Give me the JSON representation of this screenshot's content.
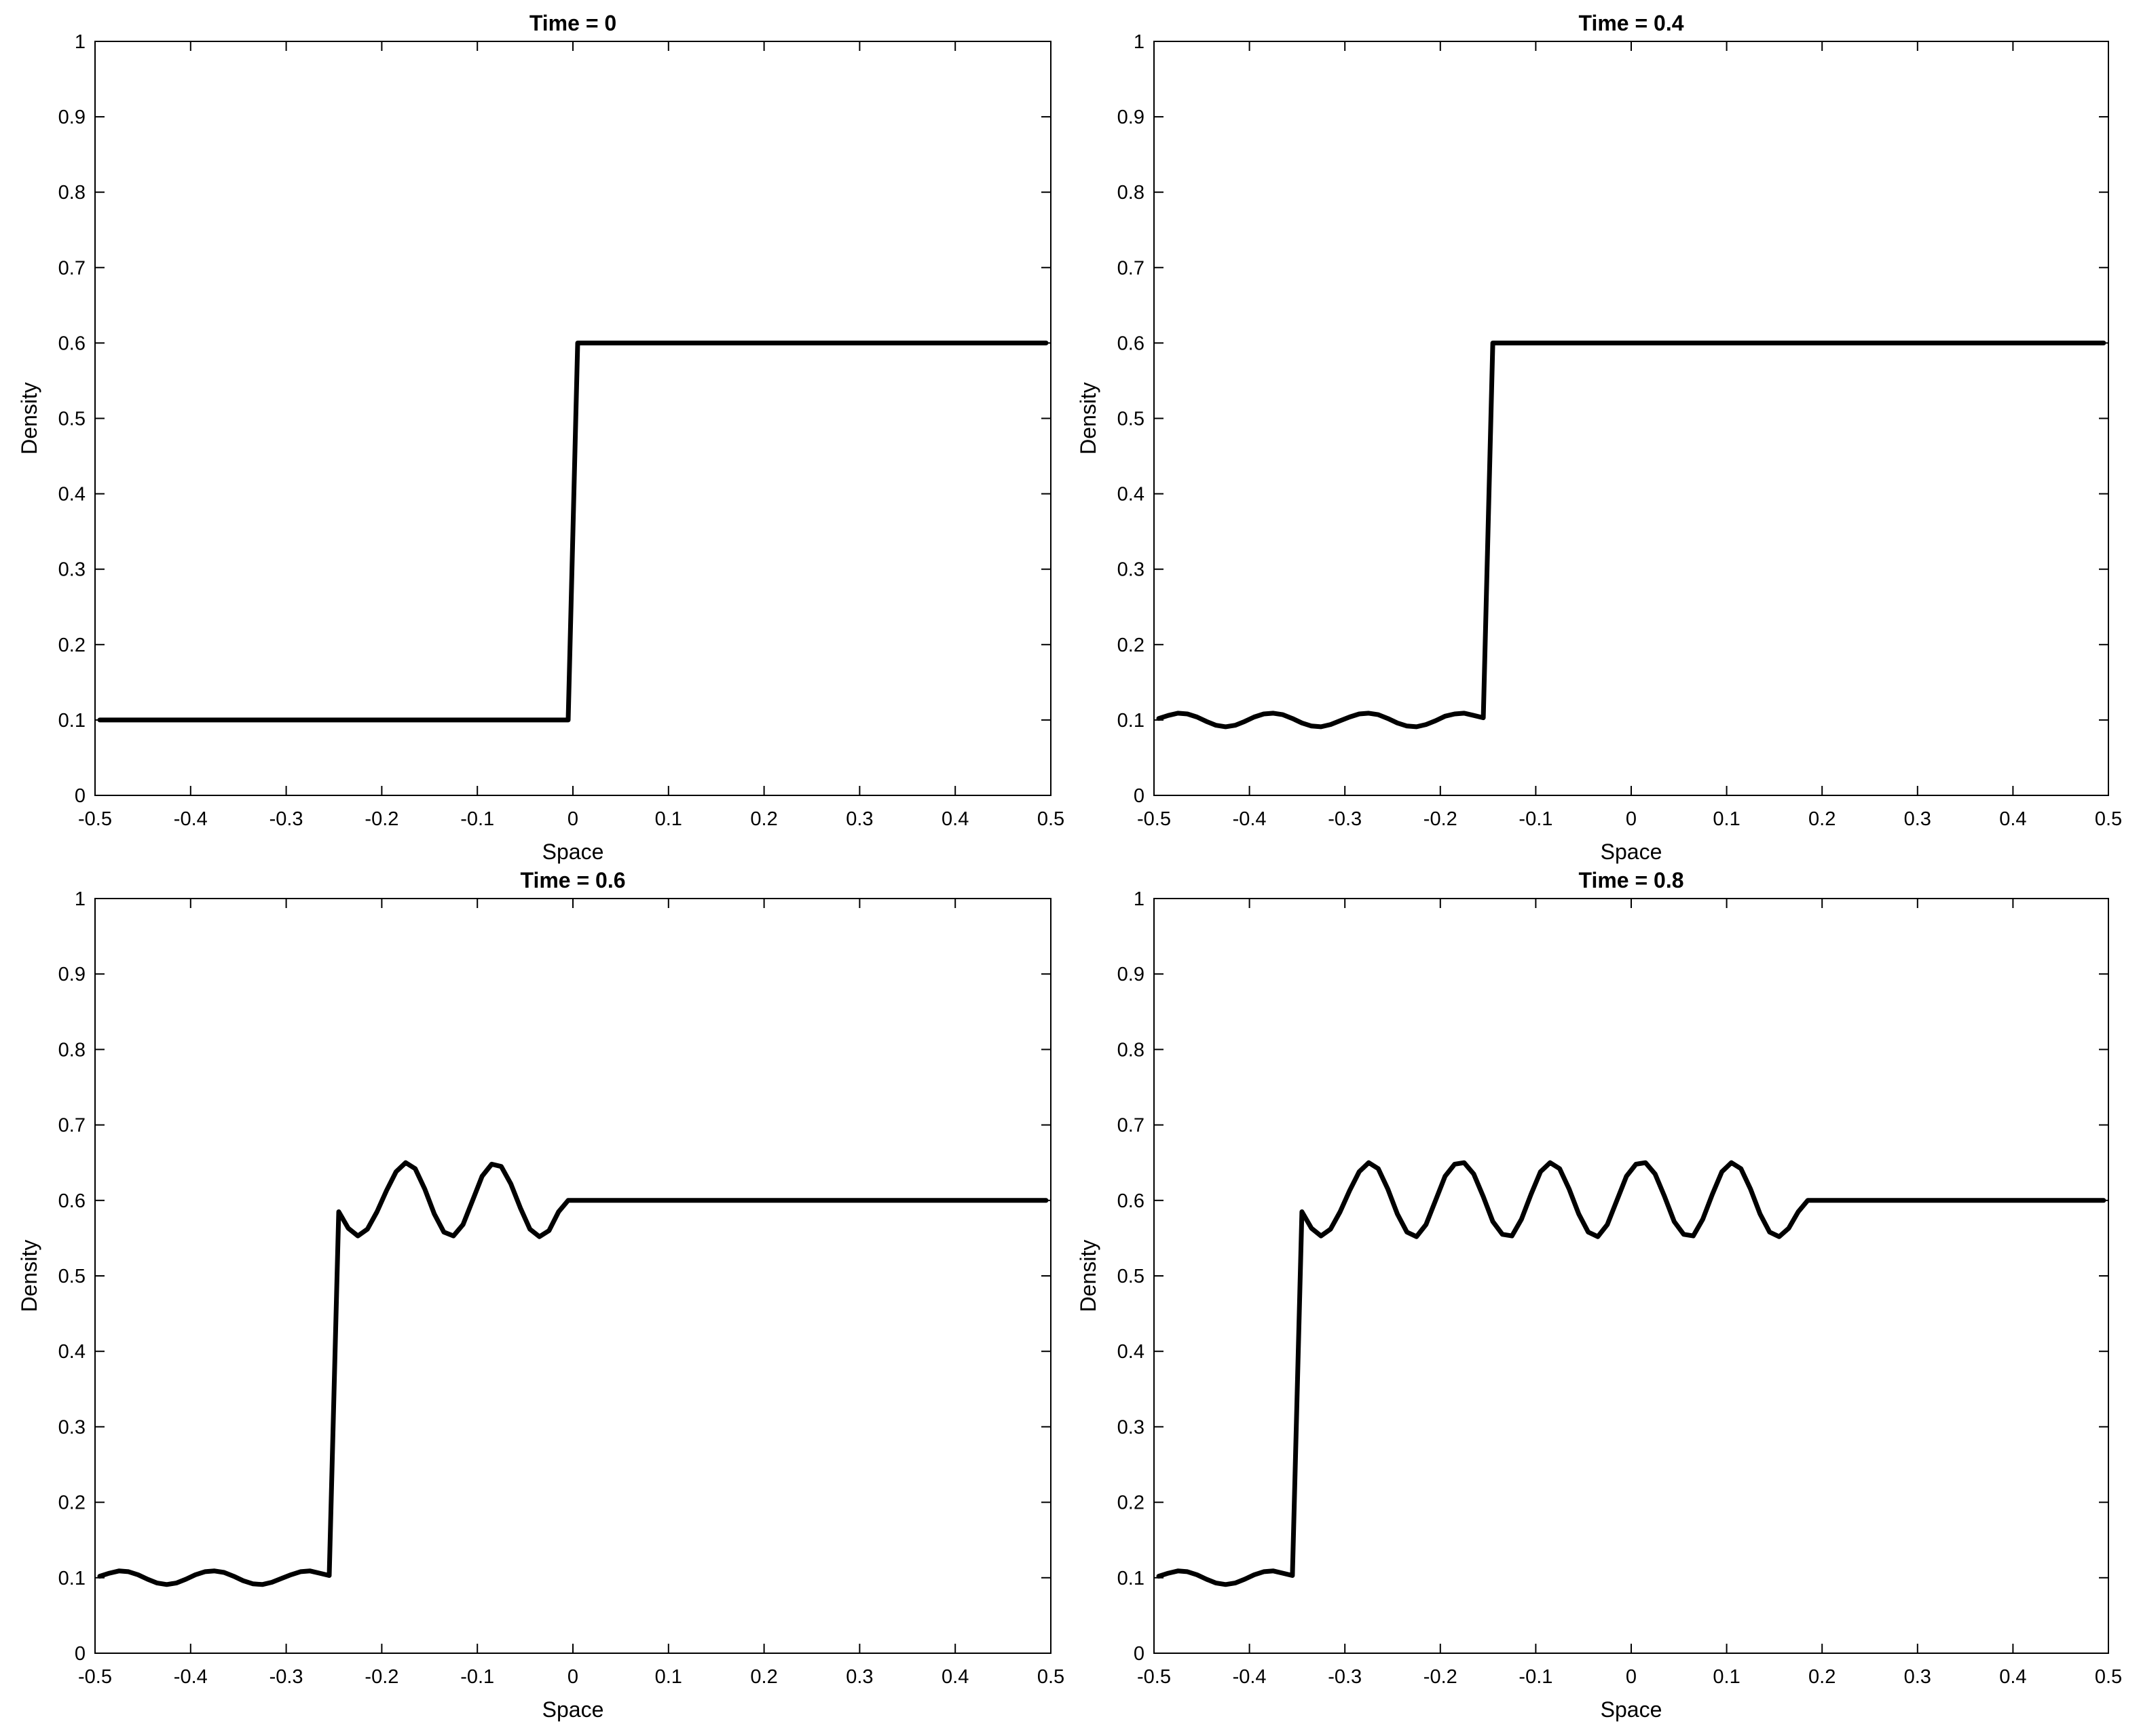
{
  "chart_data": [
    {
      "type": "line",
      "title": "Time = 0",
      "xlabel": "Space",
      "ylabel": "Density",
      "xlim": [
        -0.5,
        0.5
      ],
      "ylim": [
        0,
        1
      ],
      "xticks": [
        "-0.5",
        "-0.4",
        "-0.3",
        "-0.2",
        "-0.1",
        "0",
        "0.1",
        "0.2",
        "0.3",
        "0.4",
        "0.5"
      ],
      "yticks": [
        "0",
        "0.1",
        "0.2",
        "0.3",
        "0.4",
        "0.5",
        "0.6",
        "0.7",
        "0.8",
        "0.9",
        "1"
      ],
      "grid": false,
      "color": "#000000",
      "series": [
        {
          "x": [
            -0.495,
            -0.005,
            0.005,
            0.495
          ],
          "y": [
            0.1,
            0.1,
            0.6,
            0.6
          ]
        }
      ]
    },
    {
      "type": "line",
      "title": "Time = 0.4",
      "xlabel": "Space",
      "ylabel": "Density",
      "xlim": [
        -0.5,
        0.5
      ],
      "ylim": [
        0,
        1
      ],
      "xticks": [
        "-0.5",
        "-0.4",
        "-0.3",
        "-0.2",
        "-0.1",
        "0",
        "0.1",
        "0.2",
        "0.3",
        "0.4",
        "0.5"
      ],
      "yticks": [
        "0",
        "0.1",
        "0.2",
        "0.3",
        "0.4",
        "0.5",
        "0.6",
        "0.7",
        "0.8",
        "0.9",
        "1"
      ],
      "grid": false,
      "color": "#000000",
      "series": [
        {
          "x": [
            -0.495,
            -0.485,
            -0.475,
            -0.465,
            -0.455,
            -0.445,
            -0.435,
            -0.425,
            -0.415,
            -0.405,
            -0.395,
            -0.385,
            -0.375,
            -0.365,
            -0.355,
            -0.345,
            -0.335,
            -0.325,
            -0.315,
            -0.305,
            -0.295,
            -0.285,
            -0.275,
            -0.265,
            -0.255,
            -0.245,
            -0.235,
            -0.225,
            -0.215,
            -0.205,
            -0.195,
            -0.185,
            -0.175,
            -0.165,
            -0.155,
            -0.145,
            -0.135,
            0.495
          ],
          "y": [
            0.102,
            0.106,
            0.109,
            0.108,
            0.104,
            0.098,
            0.093,
            0.091,
            0.093,
            0.098,
            0.104,
            0.108,
            0.109,
            0.107,
            0.102,
            0.096,
            0.092,
            0.091,
            0.094,
            0.099,
            0.104,
            0.108,
            0.109,
            0.107,
            0.102,
            0.096,
            0.092,
            0.091,
            0.094,
            0.099,
            0.105,
            0.108,
            0.109,
            0.106,
            0.103,
            0.6,
            0.6,
            0.6
          ]
        }
      ]
    },
    {
      "type": "line",
      "title": "Time = 0.6",
      "xlabel": "Space",
      "ylabel": "Density",
      "xlim": [
        -0.5,
        0.5
      ],
      "ylim": [
        0,
        1
      ],
      "xticks": [
        "-0.5",
        "-0.4",
        "-0.3",
        "-0.2",
        "-0.1",
        "0",
        "0.1",
        "0.2",
        "0.3",
        "0.4",
        "0.5"
      ],
      "yticks": [
        "0",
        "0.1",
        "0.2",
        "0.3",
        "0.4",
        "0.5",
        "0.6",
        "0.7",
        "0.8",
        "0.9",
        "1"
      ],
      "grid": false,
      "color": "#000000",
      "series": [
        {
          "x": [
            -0.495,
            -0.485,
            -0.475,
            -0.465,
            -0.455,
            -0.445,
            -0.435,
            -0.425,
            -0.415,
            -0.405,
            -0.395,
            -0.385,
            -0.375,
            -0.365,
            -0.355,
            -0.345,
            -0.335,
            -0.325,
            -0.315,
            -0.305,
            -0.295,
            -0.285,
            -0.275,
            -0.265,
            -0.255,
            -0.245,
            -0.235,
            -0.225,
            -0.215,
            -0.205,
            -0.195,
            -0.185,
            -0.175,
            -0.165,
            -0.155,
            -0.145,
            -0.135,
            -0.125,
            -0.115,
            -0.105,
            -0.095,
            -0.085,
            -0.075,
            -0.065,
            -0.055,
            -0.045,
            -0.035,
            -0.025,
            -0.015,
            -0.005,
            0.005,
            0.495
          ],
          "y": [
            0.102,
            0.106,
            0.109,
            0.108,
            0.104,
            0.098,
            0.093,
            0.091,
            0.093,
            0.098,
            0.104,
            0.108,
            0.109,
            0.107,
            0.102,
            0.096,
            0.092,
            0.091,
            0.094,
            0.099,
            0.104,
            0.108,
            0.109,
            0.106,
            0.103,
            0.585,
            0.563,
            0.553,
            0.562,
            0.585,
            0.613,
            0.638,
            0.65,
            0.642,
            0.615,
            0.582,
            0.558,
            0.553,
            0.568,
            0.6,
            0.632,
            0.648,
            0.645,
            0.622,
            0.59,
            0.562,
            0.552,
            0.56,
            0.585,
            0.6,
            0.6,
            0.6
          ]
        }
      ]
    },
    {
      "type": "line",
      "title": "Time = 0.8",
      "xlabel": "Space",
      "ylabel": "Density",
      "xlim": [
        -0.5,
        0.5
      ],
      "ylim": [
        0,
        1
      ],
      "xticks": [
        "-0.5",
        "-0.4",
        "-0.3",
        "-0.2",
        "-0.1",
        "0",
        "0.1",
        "0.2",
        "0.3",
        "0.4",
        "0.5"
      ],
      "yticks": [
        "0",
        "0.1",
        "0.2",
        "0.3",
        "0.4",
        "0.5",
        "0.6",
        "0.7",
        "0.8",
        "0.9",
        "1"
      ],
      "grid": false,
      "color": "#000000",
      "series": [
        {
          "x": [
            -0.495,
            -0.485,
            -0.475,
            -0.465,
            -0.455,
            -0.445,
            -0.435,
            -0.425,
            -0.415,
            -0.405,
            -0.395,
            -0.385,
            -0.375,
            -0.365,
            -0.355,
            -0.345,
            -0.335,
            -0.325,
            -0.315,
            -0.305,
            -0.295,
            -0.285,
            -0.275,
            -0.265,
            -0.255,
            -0.245,
            -0.235,
            -0.225,
            -0.215,
            -0.205,
            -0.195,
            -0.185,
            -0.175,
            -0.165,
            -0.155,
            -0.145,
            -0.135,
            -0.125,
            -0.115,
            -0.105,
            -0.095,
            -0.085,
            -0.075,
            -0.065,
            -0.055,
            -0.045,
            -0.035,
            -0.025,
            -0.015,
            -0.005,
            0.005,
            0.015,
            0.025,
            0.035,
            0.045,
            0.055,
            0.065,
            0.075,
            0.085,
            0.095,
            0.105,
            0.115,
            0.125,
            0.135,
            0.145,
            0.155,
            0.165,
            0.175,
            0.185,
            0.195,
            0.205,
            0.495
          ],
          "y": [
            0.102,
            0.106,
            0.109,
            0.108,
            0.104,
            0.098,
            0.093,
            0.091,
            0.093,
            0.098,
            0.104,
            0.108,
            0.109,
            0.106,
            0.103,
            0.585,
            0.563,
            0.553,
            0.562,
            0.585,
            0.613,
            0.638,
            0.65,
            0.642,
            0.615,
            0.582,
            0.558,
            0.552,
            0.568,
            0.6,
            0.632,
            0.648,
            0.65,
            0.635,
            0.605,
            0.572,
            0.555,
            0.553,
            0.575,
            0.608,
            0.638,
            0.65,
            0.642,
            0.615,
            0.582,
            0.558,
            0.552,
            0.568,
            0.6,
            0.632,
            0.648,
            0.65,
            0.635,
            0.605,
            0.572,
            0.555,
            0.553,
            0.575,
            0.608,
            0.638,
            0.65,
            0.642,
            0.615,
            0.582,
            0.558,
            0.552,
            0.563,
            0.585,
            0.6,
            0.6,
            0.6,
            0.6
          ]
        }
      ]
    }
  ]
}
